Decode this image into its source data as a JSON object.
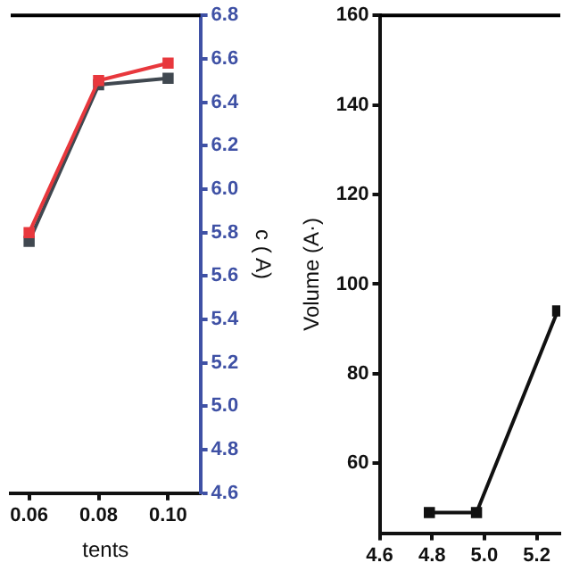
{
  "chart_data": [
    {
      "type": "line",
      "x": [
        0.06,
        0.08,
        0.1
      ],
      "xlim": [
        0.0547,
        0.1093
      ],
      "xticks": [
        {
          "value": 0.06,
          "label": "0.06"
        },
        {
          "value": 0.08,
          "label": "0.08"
        },
        {
          "value": 0.1,
          "label": "0.10"
        }
      ],
      "xlabel": "tents",
      "y2label": "c ( A)",
      "y2lim": [
        4.6,
        6.8
      ],
      "y2ticks": [
        {
          "value": 4.6,
          "label": "4.6"
        },
        {
          "value": 4.8,
          "label": "4.8"
        },
        {
          "value": 5,
          "label": "5.0"
        },
        {
          "value": 5.2,
          "label": "5.2"
        },
        {
          "value": 5.4,
          "label": "5.4"
        },
        {
          "value": 5.6,
          "label": "5.6"
        },
        {
          "value": 5.8,
          "label": "5.8"
        },
        {
          "value": 6,
          "label": "6.0"
        },
        {
          "value": 6.2,
          "label": "6.2"
        },
        {
          "value": 6.4,
          "label": "6.4"
        },
        {
          "value": 6.6,
          "label": "6.6"
        },
        {
          "value": 6.8,
          "label": "6.8"
        }
      ],
      "marker": "square",
      "grid": false,
      "legend": false,
      "series": [
        {
          "color": "#e8383d",
          "axis": "y2",
          "values": [
            5.8,
            6.5,
            6.58
          ]
        },
        {
          "color": "#404850",
          "axis": "y2",
          "values": [
            5.76,
            6.48,
            6.51
          ]
        }
      ]
    },
    {
      "type": "line",
      "x": [
        4.79,
        4.97,
        5.28
      ],
      "xlim": [
        4.6,
        5.29
      ],
      "xticks": [
        {
          "value": 4.6,
          "label": "4.6"
        },
        {
          "value": 4.8,
          "label": "4.8"
        },
        {
          "value": 5,
          "label": "5.0"
        },
        {
          "value": 5.2,
          "label": "5.2"
        }
      ],
      "ylim": [
        44.4,
        160
      ],
      "yticks": [
        60,
        80,
        100,
        120,
        140,
        160
      ],
      "ylabel": "Volume (A·)",
      "marker": "square",
      "grid": false,
      "legend": false,
      "series": [
        {
          "color": "#111111",
          "values": [
            49,
            49,
            94
          ]
        }
      ]
    }
  ]
}
